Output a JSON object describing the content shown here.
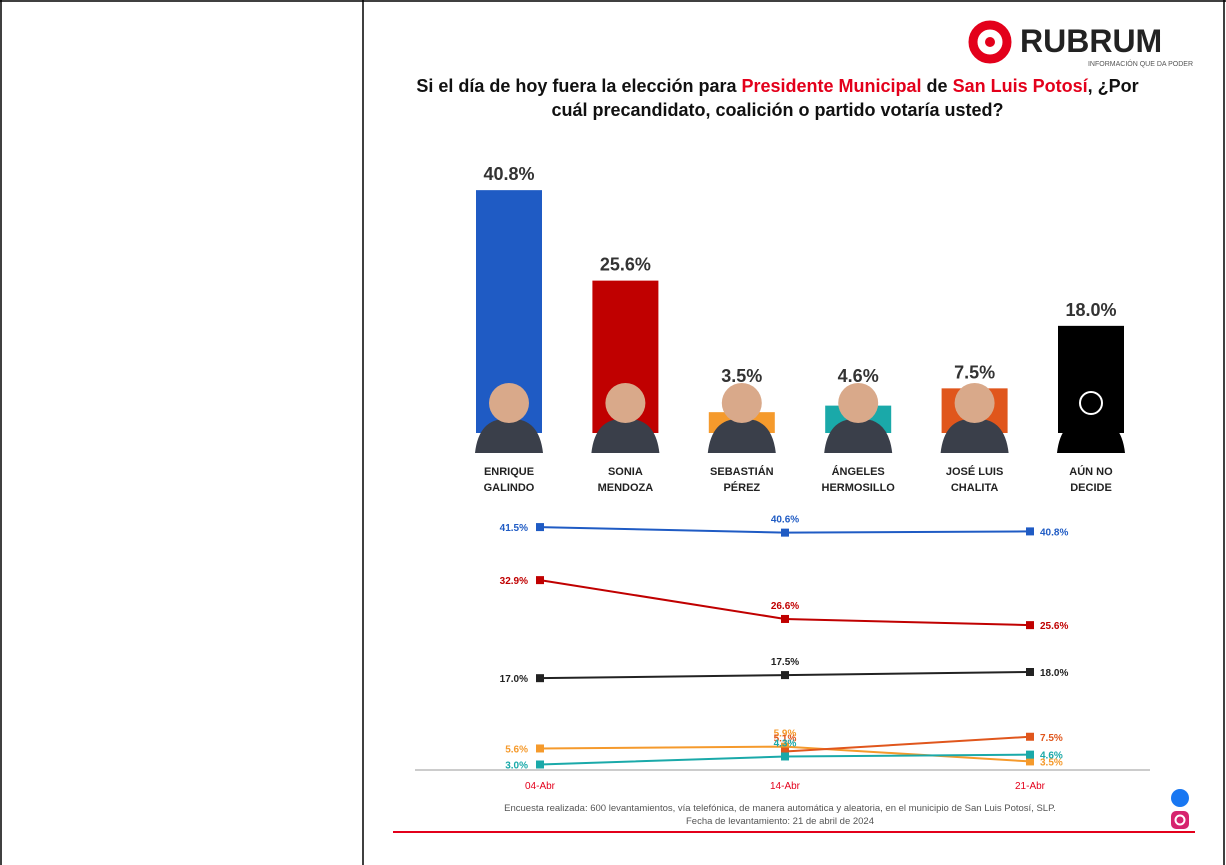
{
  "logo": {
    "name": "RUBRUM",
    "tagline": "INFORMACIÓN QUE DA PODER"
  },
  "title": [
    "Si el día de hoy fuera la elección para ",
    "Presidente Municipal",
    " de ",
    "San Luis Potosí",
    ", ¿Por cuál precandidato, coalición o partido votaría usted?"
  ],
  "title_colors": [
    "#111111",
    "#e3001b",
    "#111111",
    "#e3001b",
    "#111111"
  ],
  "chart_data": [
    {
      "type": "bar",
      "categories": [
        "ENRIQUE\nGALINDO",
        "SONIA\nMENDOZA",
        "SEBASTIÁN\nPÉREZ",
        "ÁNGELES\nHERMOSILLO",
        "JOSÉ LUIS\nCHALITA",
        "AÚN NO\nDECIDE"
      ],
      "values": [
        40.8,
        25.6,
        3.5,
        4.6,
        7.5,
        18.0
      ],
      "value_labels": [
        "40.8%",
        "25.6%",
        "3.5%",
        "4.6%",
        "7.5%",
        "18.0%"
      ],
      "colors": [
        "#1f5bc4",
        "#c00000",
        "#f59a2c",
        "#1aa9a9",
        "#e0561c",
        "#000000"
      ],
      "ylim": [
        0,
        42
      ]
    },
    {
      "type": "line",
      "categories": [
        "04-Abr",
        "14-Abr",
        "21-Abr"
      ],
      "series": [
        {
          "color": "#1f5bc4",
          "values": [
            41.5,
            40.6,
            40.8
          ],
          "value_labels": [
            "41.5%",
            "40.6%",
            "40.8%"
          ]
        },
        {
          "color": "#c00000",
          "values": [
            32.9,
            26.6,
            25.6
          ],
          "value_labels": [
            "32.9%",
            "26.6%",
            "25.6%"
          ]
        },
        {
          "color": "#222222",
          "values": [
            17.0,
            17.5,
            18.0
          ],
          "value_labels": [
            "17.0%",
            "17.5%",
            "18.0%"
          ]
        },
        {
          "color": "#f59a2c",
          "values": [
            5.6,
            5.9,
            3.5
          ],
          "value_labels": [
            "5.6%",
            "5.9%",
            "3.5%"
          ]
        },
        {
          "color": "#e0561c",
          "values": [
            null,
            5.1,
            7.5
          ],
          "value_labels": [
            null,
            "5.1%",
            "7.5%"
          ]
        },
        {
          "color": "#1aa9a9",
          "values": [
            3.0,
            4.3,
            4.6
          ],
          "value_labels": [
            "3.0%",
            "4.3%",
            "4.6%"
          ]
        }
      ],
      "ylim": [
        0,
        42
      ]
    }
  ],
  "footer": {
    "note": "Encuesta realizada: 600 levantamientos, vía telefónica, de manera automática y aleatoria, en el municipio de San Luis Potosí, SLP.",
    "date": "Fecha de levantamiento: 21 de abril de 2024"
  }
}
